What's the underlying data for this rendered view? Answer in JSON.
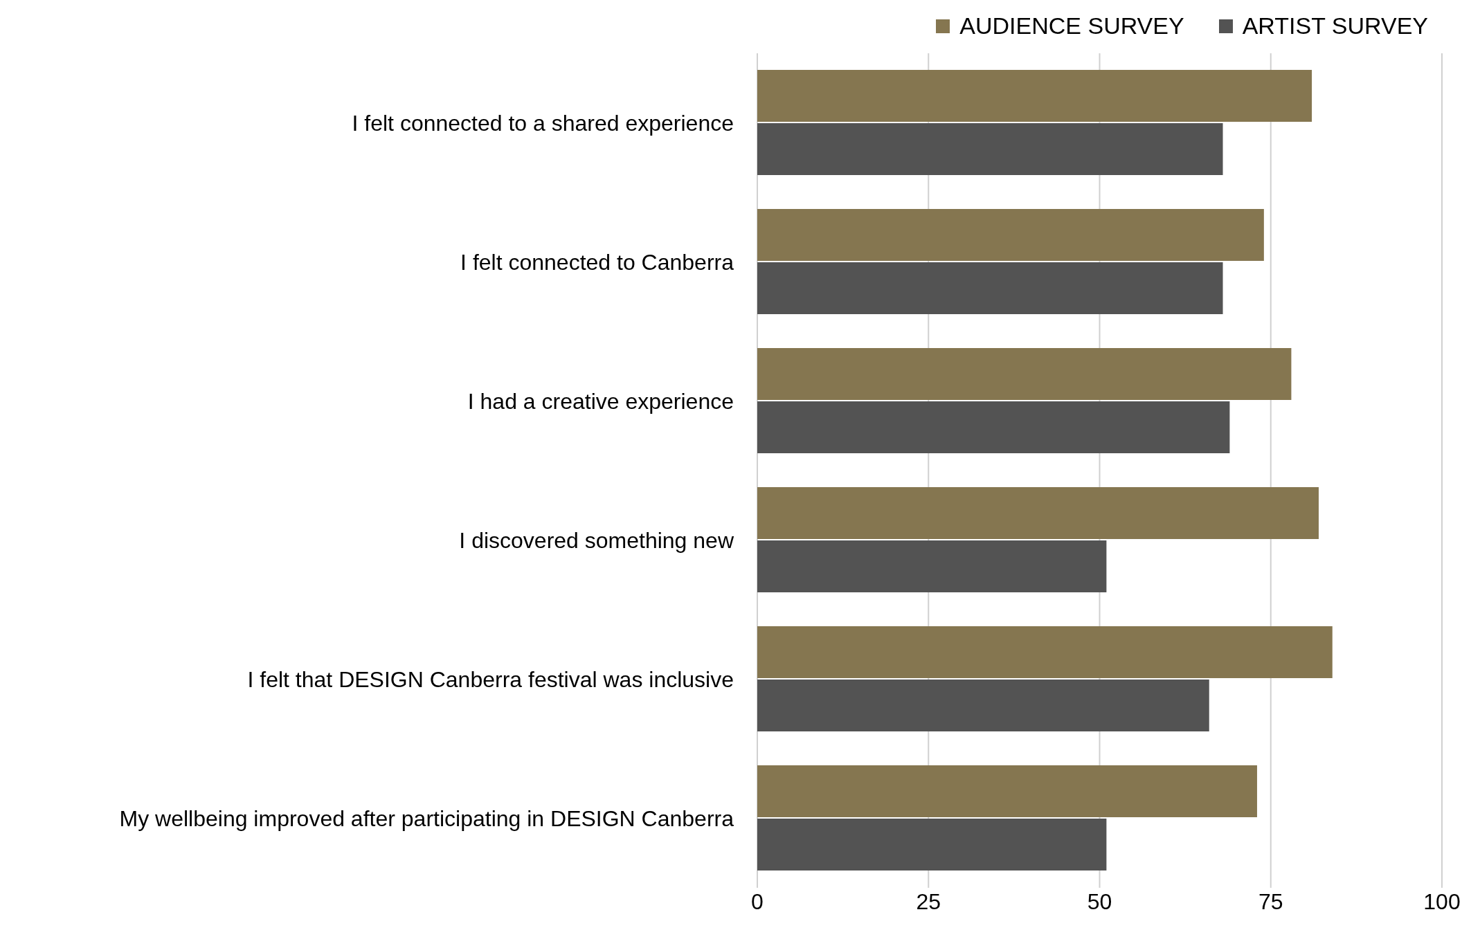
{
  "chart_data": {
    "type": "bar",
    "orientation": "horizontal",
    "categories": [
      "I felt connected to a shared experience",
      "I felt connected to Canberra",
      "I had a creative experience",
      "I discovered something new",
      "I felt that DESIGN Canberra festival was inclusive",
      "My wellbeing improved after participating in DESIGN Canberra"
    ],
    "series": [
      {
        "name": "AUDIENCE SURVEY",
        "color": "#857650",
        "values": [
          81,
          74,
          78,
          82,
          84,
          73
        ]
      },
      {
        "name": "ARTIST SURVEY",
        "color": "#535353",
        "values": [
          68,
          68,
          69,
          51,
          66,
          51
        ]
      }
    ],
    "xlim": [
      0,
      100
    ],
    "xticks": [
      0,
      25,
      50,
      75,
      100
    ],
    "grid": "x",
    "legend": "top right"
  }
}
